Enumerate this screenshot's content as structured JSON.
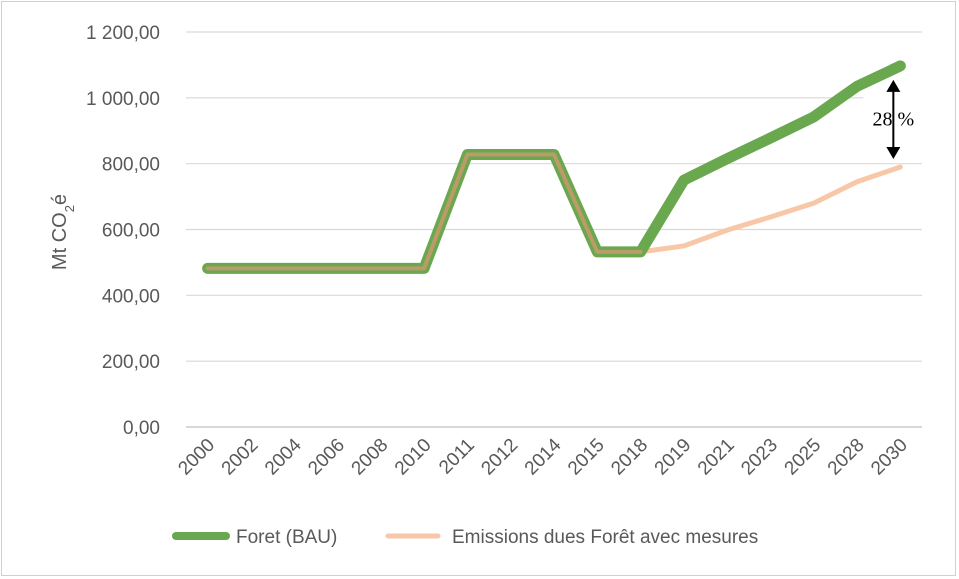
{
  "chart_data": {
    "type": "line",
    "categories": [
      "2000",
      "2002",
      "2004",
      "2006",
      "2008",
      "2010",
      "2011",
      "2012",
      "2014",
      "2015",
      "2018",
      "2019",
      "2021",
      "2023",
      "2025",
      "2028",
      "2030"
    ],
    "ylabel_main": "Mt CO",
    "ylabel_sub": "2",
    "ylabel_suffix": "é",
    "ylim": [
      0,
      1200
    ],
    "yticks": [
      0,
      200,
      400,
      600,
      800,
      1000,
      1200
    ],
    "ytick_labels": [
      "0,00",
      "200,00",
      "400,00",
      "600,00",
      "800,00",
      "1 000,00",
      "1 200,00"
    ],
    "grid": true,
    "legend_position": "bottom",
    "series": [
      {
        "name": "Foret (BAU)",
        "color": "#6aa84f",
        "values": [
          482,
          482,
          482,
          482,
          482,
          482,
          828,
          828,
          828,
          532,
          532,
          750,
          815,
          878,
          942,
          1035,
          1097
        ]
      },
      {
        "name": "Emissions dues Forêt avec mesures",
        "color": "#f7c7a8",
        "values": [
          482,
          482,
          482,
          482,
          482,
          482,
          828,
          828,
          828,
          532,
          532,
          550,
          598,
          638,
          680,
          745,
          790
        ]
      }
    ],
    "annotation": {
      "text": "28 %",
      "category": "2030",
      "from": 1097,
      "to": 790
    }
  }
}
